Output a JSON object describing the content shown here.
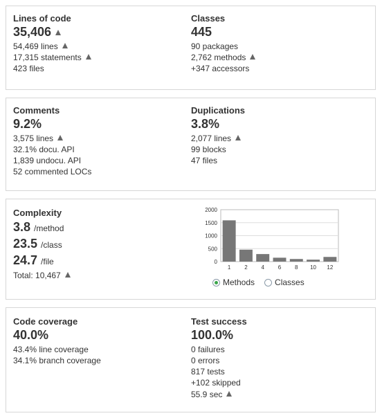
{
  "size": {
    "title": "Lines of code",
    "value": "35,406",
    "lines": "54,469 lines",
    "statements": "17,315 statements",
    "files": "423 files"
  },
  "classes": {
    "title": "Classes",
    "value": "445",
    "packages": "90 packages",
    "methods": "2,762 methods",
    "accessors": "+347 accessors"
  },
  "comments": {
    "title": "Comments",
    "value": "9.2%",
    "lines": "3,575 lines",
    "docu_api": "32.1% docu. API",
    "undocu_api": "1,839 undocu. API",
    "commented_locs": "52 commented LOCs"
  },
  "duplications": {
    "title": "Duplications",
    "value": "3.8%",
    "lines": "2,077 lines",
    "blocks": "99 blocks",
    "files": "47 files"
  },
  "complexity": {
    "title": "Complexity",
    "per_method_value": "3.8",
    "per_method_unit": "/method",
    "per_class_value": "23.5",
    "per_class_unit": "/class",
    "per_file_value": "24.7",
    "per_file_unit": "/file",
    "total": "Total: 10,467",
    "radio_methods": "Methods",
    "radio_classes": "Classes",
    "selected": "Methods"
  },
  "coverage": {
    "title": "Code coverage",
    "value": "40.0%",
    "line_coverage": "43.4% line coverage",
    "branch_coverage": "34.1% branch coverage"
  },
  "tests": {
    "title": "Test success",
    "value": "100.0%",
    "failures": "0 failures",
    "errors": "0 errors",
    "tests": "817 tests",
    "skipped": "+102 skipped",
    "duration": "55.9 sec"
  },
  "colors": {
    "bar": "#777777",
    "border": "#d6d6d6",
    "trend_icon": "#666666",
    "radio_selected": "#3ba54a"
  },
  "icons": [
    "trend-up-icon",
    "radio-icon"
  ],
  "chart_data": {
    "type": "bar",
    "categories": [
      "1",
      "2",
      "4",
      "6",
      "8",
      "10",
      "12"
    ],
    "values": [
      1590,
      460,
      290,
      150,
      100,
      75,
      180
    ],
    "ylim": [
      0,
      2000
    ],
    "yticks": [
      "2000",
      "1500",
      "1000",
      "500",
      "0"
    ],
    "grid": true,
    "legend": "none"
  }
}
